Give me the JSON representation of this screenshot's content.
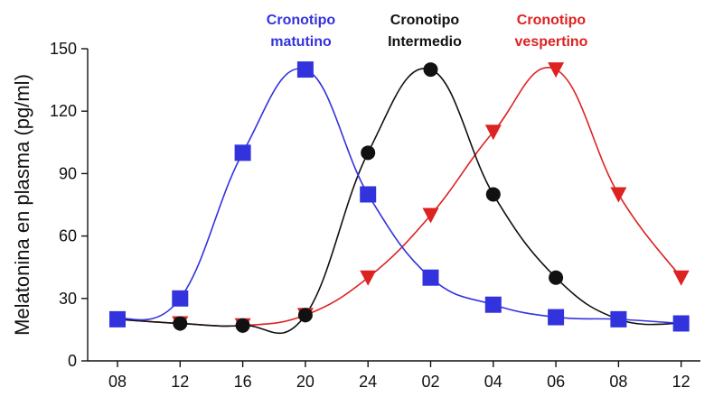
{
  "chart_data": {
    "type": "line",
    "title": "",
    "xlabel": "",
    "ylabel": "Melatonina en plasma (pg/ml)",
    "categories": [
      "08",
      "12",
      "16",
      "20",
      "24",
      "02",
      "04",
      "06",
      "08",
      "12"
    ],
    "ylim": [
      0,
      150
    ],
    "yticks": [
      0,
      30,
      60,
      90,
      120,
      150
    ],
    "grid": false,
    "legend": "inline-top",
    "series": [
      {
        "name": "Cronotipo matutino",
        "label_lines": [
          "Cronotipo",
          "matutino"
        ],
        "color": "#3333dd",
        "marker": "square",
        "values": [
          20,
          30,
          100,
          140,
          80,
          40,
          27,
          21,
          20,
          18
        ]
      },
      {
        "name": "Cronotipo Intermedio",
        "label_lines": [
          "Cronotipo",
          "Intermedio"
        ],
        "color": "#111111",
        "marker": "circle",
        "values": [
          20,
          18,
          17,
          22,
          100,
          140,
          80,
          40,
          20,
          18
        ]
      },
      {
        "name": "Cronotipo vespertino",
        "label_lines": [
          "Cronotipo",
          "vespertino"
        ],
        "color": "#dd2222",
        "marker": "triangle-down",
        "values": [
          20,
          18,
          17,
          22,
          40,
          70,
          110,
          140,
          80,
          40
        ]
      }
    ]
  }
}
